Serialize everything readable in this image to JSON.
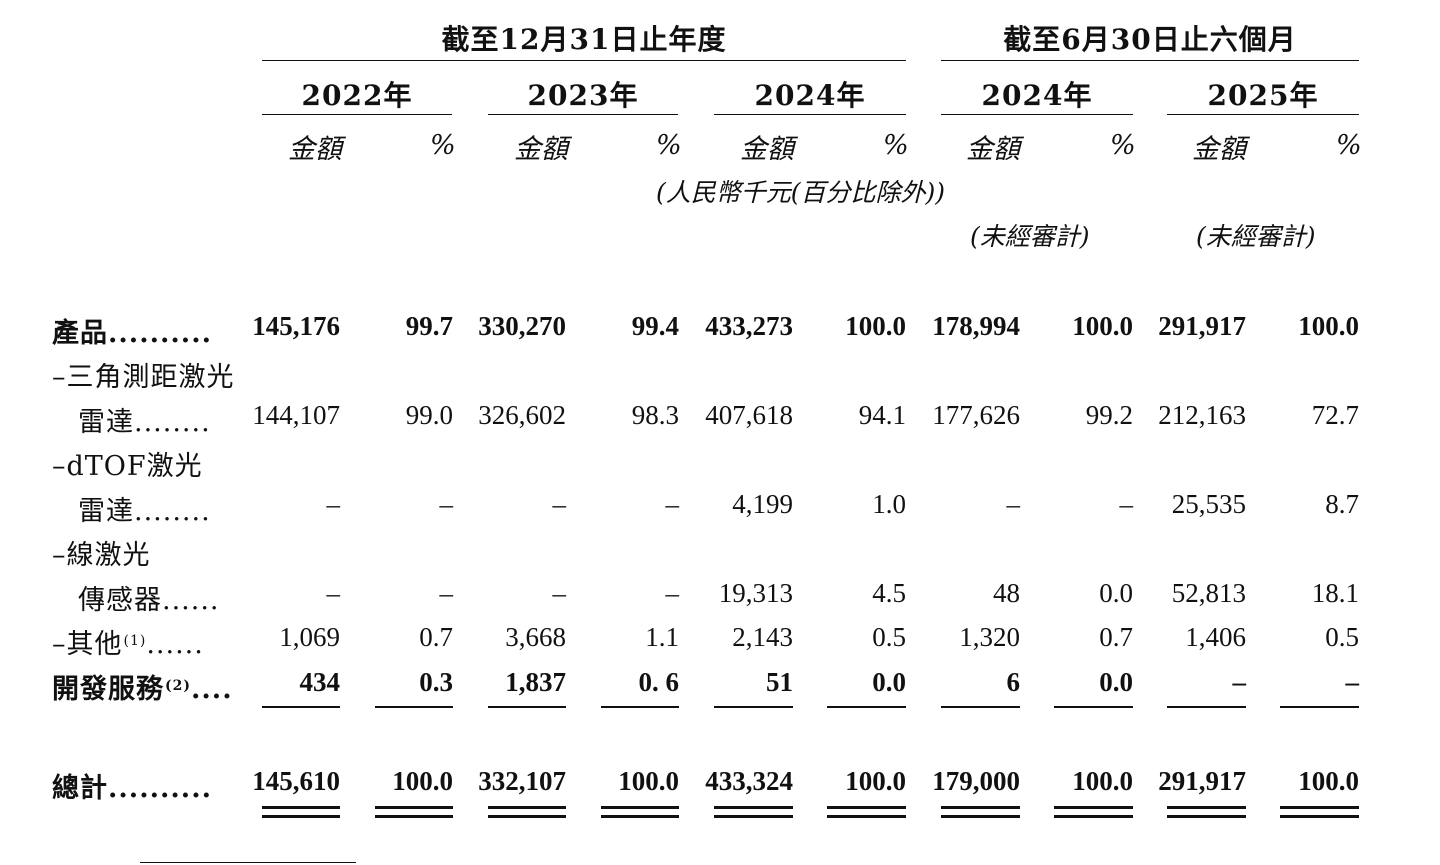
{
  "header": {
    "group_year_title": "截至12月31日止年度",
    "group_half_title": "截至6月30日止六個月",
    "years": [
      "2022年",
      "2023年",
      "2024年",
      "2024年",
      "2025年"
    ],
    "amount_label": "金額",
    "percent_label": "%",
    "unit_note": "(人民幣千元(百分比除外))",
    "unaudited_note": "(未經審計)"
  },
  "rows": [
    {
      "label": "產品..........",
      "bold": true,
      "values": [
        "145,176",
        "99.7",
        "330,270",
        "99.4",
        "433,273",
        "100.0",
        "178,994",
        "100.0",
        "291,917",
        "100.0"
      ]
    },
    {
      "label": "–三角測距激光",
      "sublabel": "雷達........",
      "values": [
        "144,107",
        "99.0",
        "326,602",
        "98.3",
        "407,618",
        "94.1",
        "177,626",
        "99.2",
        "212,163",
        "72.7"
      ]
    },
    {
      "label": "–dTOF激光",
      "sublabel": "雷達........",
      "values": [
        "–",
        "–",
        "–",
        "–",
        "4,199",
        "1.0",
        "–",
        "–",
        "25,535",
        "8.7"
      ]
    },
    {
      "label": "–線激光",
      "sublabel": "傳感器......",
      "values": [
        "–",
        "–",
        "–",
        "–",
        "19,313",
        "4.5",
        "48",
        "0.0",
        "52,813",
        "18.1"
      ]
    },
    {
      "label": "–其他",
      "note": "(1)",
      "suffix": "......",
      "values": [
        "1,069",
        "0.7",
        "3,668",
        "1.1",
        "2,143",
        "0.5",
        "1,320",
        "0.7",
        "1,406",
        "0.5"
      ]
    },
    {
      "label": "開發服務",
      "note": "(2)",
      "suffix": "....",
      "bold": true,
      "values": [
        "434",
        "0.3",
        "1,837",
        "0. 6",
        "51",
        "0.0",
        "6",
        "0.0",
        "–",
        "–"
      ]
    }
  ],
  "total": {
    "label": "總計..........",
    "values": [
      "145,610",
      "100.0",
      "332,107",
      "100.0",
      "433,324",
      "100.0",
      "179,000",
      "100.0",
      "291,917",
      "100.0"
    ]
  }
}
